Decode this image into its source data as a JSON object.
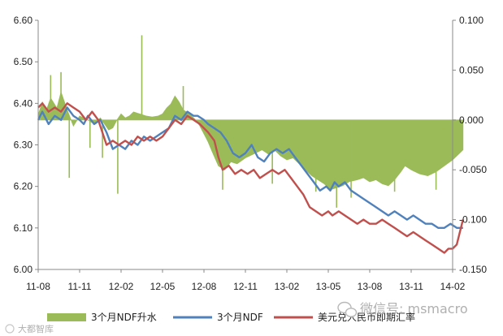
{
  "chart_data": {
    "type": "line",
    "x_labels": [
      "11-08",
      "11-11",
      "12-02",
      "12-05",
      "12-08",
      "12-11",
      "13-02",
      "13-05",
      "13-08",
      "13-11",
      "14-02"
    ],
    "y_left": {
      "ylim": [
        6.0,
        6.6
      ],
      "ticks": [
        "6.00",
        "6.10",
        "6.20",
        "6.30",
        "6.40",
        "6.50",
        "6.60"
      ]
    },
    "y_right": {
      "ylim": [
        -0.15,
        0.1
      ],
      "ticks": [
        "0.100",
        "0.050",
        "0.000",
        "-0.050",
        "-0.100",
        "-0.150"
      ]
    },
    "series": [
      {
        "name": "3个月NDF升水",
        "axis": "right",
        "kind": "area",
        "color": "#9bbb59",
        "points": [
          [
            0,
            0.005
          ],
          [
            0.1,
            0.018
          ],
          [
            0.2,
            0.01
          ],
          [
            0.3,
            0.022
          ],
          [
            0.45,
            0.012
          ],
          [
            0.55,
            0.028
          ],
          [
            0.7,
            0.01
          ],
          [
            0.85,
            -0.006
          ],
          [
            1.0,
            0.004
          ],
          [
            1.2,
            0.0
          ],
          [
            1.35,
            -0.004
          ],
          [
            1.5,
            0.002
          ],
          [
            1.7,
            -0.01
          ],
          [
            1.8,
            -0.008
          ],
          [
            1.9,
            0.0
          ],
          [
            2.0,
            0.006
          ],
          [
            2.1,
            0.002
          ],
          [
            2.2,
            0.004
          ],
          [
            2.3,
            0.008
          ],
          [
            2.45,
            0.006
          ],
          [
            2.6,
            0.004
          ],
          [
            2.75,
            0.003
          ],
          [
            2.9,
            0.004
          ],
          [
            3.0,
            0.006
          ],
          [
            3.1,
            0.012
          ],
          [
            3.2,
            0.016
          ],
          [
            3.3,
            0.024
          ],
          [
            3.4,
            0.018
          ],
          [
            3.5,
            0.01
          ],
          [
            3.65,
            0.006
          ],
          [
            3.8,
            0.0
          ],
          [
            3.9,
            -0.006
          ],
          [
            4.0,
            -0.014
          ],
          [
            4.1,
            -0.022
          ],
          [
            4.2,
            -0.032
          ],
          [
            4.35,
            -0.046
          ],
          [
            4.5,
            -0.05
          ],
          [
            4.65,
            -0.042
          ],
          [
            4.8,
            -0.044
          ],
          [
            5.0,
            -0.038
          ],
          [
            5.2,
            -0.034
          ],
          [
            5.4,
            -0.03
          ],
          [
            5.55,
            -0.034
          ],
          [
            5.7,
            -0.03
          ],
          [
            5.85,
            -0.036
          ],
          [
            6.0,
            -0.04
          ],
          [
            6.15,
            -0.038
          ],
          [
            6.3,
            -0.044
          ],
          [
            6.45,
            -0.05
          ],
          [
            6.6,
            -0.056
          ],
          [
            6.75,
            -0.06
          ],
          [
            6.9,
            -0.064
          ],
          [
            7.05,
            -0.07
          ],
          [
            7.2,
            -0.068
          ],
          [
            7.35,
            -0.066
          ],
          [
            7.5,
            -0.062
          ],
          [
            7.7,
            -0.06
          ],
          [
            7.85,
            -0.058
          ],
          [
            8.0,
            -0.062
          ],
          [
            8.15,
            -0.06
          ],
          [
            8.3,
            -0.064
          ],
          [
            8.45,
            -0.066
          ],
          [
            8.6,
            -0.06
          ],
          [
            8.75,
            -0.052
          ],
          [
            8.85,
            -0.046
          ],
          [
            9.0,
            -0.05
          ],
          [
            9.2,
            -0.054
          ],
          [
            9.4,
            -0.056
          ],
          [
            9.6,
            -0.052
          ],
          [
            9.8,
            -0.046
          ],
          [
            10.0,
            -0.04
          ],
          [
            10.15,
            -0.034
          ],
          [
            10.25,
            -0.03
          ]
        ],
        "spikes": [
          [
            0.3,
            0.045
          ],
          [
            0.55,
            0.048
          ],
          [
            0.75,
            -0.058
          ],
          [
            1.25,
            -0.028
          ],
          [
            1.55,
            -0.038
          ],
          [
            1.92,
            -0.074
          ],
          [
            2.5,
            0.085
          ],
          [
            3.5,
            0.034
          ],
          [
            4.45,
            -0.07
          ],
          [
            5.65,
            -0.064
          ],
          [
            6.7,
            -0.072
          ],
          [
            7.2,
            -0.088
          ],
          [
            7.55,
            -0.078
          ],
          [
            8.6,
            -0.072
          ],
          [
            9.6,
            -0.07
          ]
        ]
      },
      {
        "name": "3个月NDF",
        "axis": "left",
        "kind": "line",
        "color": "#4f81bd",
        "points": [
          [
            0,
            6.36
          ],
          [
            0.1,
            6.38
          ],
          [
            0.25,
            6.35
          ],
          [
            0.4,
            6.37
          ],
          [
            0.55,
            6.36
          ],
          [
            0.7,
            6.39
          ],
          [
            0.85,
            6.37
          ],
          [
            1.0,
            6.36
          ],
          [
            1.1,
            6.35
          ],
          [
            1.2,
            6.37
          ],
          [
            1.35,
            6.35
          ],
          [
            1.5,
            6.36
          ],
          [
            1.65,
            6.33
          ],
          [
            1.8,
            6.29
          ],
          [
            1.95,
            6.3
          ],
          [
            2.1,
            6.29
          ],
          [
            2.25,
            6.31
          ],
          [
            2.4,
            6.3
          ],
          [
            2.55,
            6.32
          ],
          [
            2.7,
            6.31
          ],
          [
            2.85,
            6.32
          ],
          [
            3.0,
            6.33
          ],
          [
            3.15,
            6.34
          ],
          [
            3.3,
            6.37
          ],
          [
            3.45,
            6.36
          ],
          [
            3.6,
            6.38
          ],
          [
            3.75,
            6.37
          ],
          [
            3.85,
            6.37
          ],
          [
            4.0,
            6.36
          ],
          [
            4.1,
            6.35
          ],
          [
            4.25,
            6.34
          ],
          [
            4.4,
            6.33
          ],
          [
            4.55,
            6.31
          ],
          [
            4.7,
            6.28
          ],
          [
            4.85,
            6.27
          ],
          [
            5.0,
            6.28
          ],
          [
            5.15,
            6.3
          ],
          [
            5.3,
            6.27
          ],
          [
            5.45,
            6.26
          ],
          [
            5.6,
            6.28
          ],
          [
            5.75,
            6.29
          ],
          [
            5.9,
            6.28
          ],
          [
            6.05,
            6.29
          ],
          [
            6.2,
            6.27
          ],
          [
            6.35,
            6.25
          ],
          [
            6.5,
            6.23
          ],
          [
            6.65,
            6.21
          ],
          [
            6.8,
            6.19
          ],
          [
            6.95,
            6.2
          ],
          [
            7.05,
            6.19
          ],
          [
            7.15,
            6.21
          ],
          [
            7.25,
            6.2
          ],
          [
            7.4,
            6.21
          ],
          [
            7.55,
            6.19
          ],
          [
            7.7,
            6.18
          ],
          [
            7.85,
            6.17
          ],
          [
            8.0,
            6.16
          ],
          [
            8.15,
            6.15
          ],
          [
            8.3,
            6.14
          ],
          [
            8.45,
            6.13
          ],
          [
            8.6,
            6.14
          ],
          [
            8.75,
            6.13
          ],
          [
            8.9,
            6.12
          ],
          [
            9.05,
            6.13
          ],
          [
            9.2,
            6.12
          ],
          [
            9.35,
            6.11
          ],
          [
            9.5,
            6.11
          ],
          [
            9.65,
            6.1
          ],
          [
            9.8,
            6.1
          ],
          [
            9.95,
            6.11
          ],
          [
            10.1,
            6.1
          ],
          [
            10.25,
            6.1
          ]
        ]
      },
      {
        "name": "美元兑人民币即期汇率",
        "axis": "left",
        "kind": "line",
        "color": "#c0504d",
        "points": [
          [
            0,
            6.39
          ],
          [
            0.1,
            6.4
          ],
          [
            0.25,
            6.38
          ],
          [
            0.4,
            6.39
          ],
          [
            0.55,
            6.38
          ],
          [
            0.7,
            6.4
          ],
          [
            0.85,
            6.39
          ],
          [
            1.0,
            6.38
          ],
          [
            1.15,
            6.36
          ],
          [
            1.3,
            6.38
          ],
          [
            1.45,
            6.36
          ],
          [
            1.55,
            6.33
          ],
          [
            1.65,
            6.3
          ],
          [
            1.8,
            6.31
          ],
          [
            1.95,
            6.3
          ],
          [
            2.1,
            6.31
          ],
          [
            2.25,
            6.3
          ],
          [
            2.4,
            6.32
          ],
          [
            2.55,
            6.31
          ],
          [
            2.7,
            6.32
          ],
          [
            2.85,
            6.31
          ],
          [
            3.0,
            6.32
          ],
          [
            3.15,
            6.34
          ],
          [
            3.3,
            6.36
          ],
          [
            3.45,
            6.35
          ],
          [
            3.6,
            6.37
          ],
          [
            3.75,
            6.36
          ],
          [
            3.9,
            6.35
          ],
          [
            4.0,
            6.34
          ],
          [
            4.1,
            6.33
          ],
          [
            4.25,
            6.31
          ],
          [
            4.35,
            6.27
          ],
          [
            4.45,
            6.24
          ],
          [
            4.6,
            6.25
          ],
          [
            4.75,
            6.23
          ],
          [
            4.9,
            6.24
          ],
          [
            5.05,
            6.23
          ],
          [
            5.2,
            6.24
          ],
          [
            5.35,
            6.22
          ],
          [
            5.5,
            6.23
          ],
          [
            5.65,
            6.24
          ],
          [
            5.8,
            6.23
          ],
          [
            5.95,
            6.24
          ],
          [
            6.1,
            6.22
          ],
          [
            6.25,
            6.2
          ],
          [
            6.4,
            6.18
          ],
          [
            6.55,
            6.15
          ],
          [
            6.7,
            6.14
          ],
          [
            6.85,
            6.13
          ],
          [
            7.0,
            6.14
          ],
          [
            7.1,
            6.13
          ],
          [
            7.25,
            6.14
          ],
          [
            7.4,
            6.13
          ],
          [
            7.55,
            6.12
          ],
          [
            7.7,
            6.11
          ],
          [
            7.85,
            6.12
          ],
          [
            8.0,
            6.11
          ],
          [
            8.15,
            6.11
          ],
          [
            8.3,
            6.12
          ],
          [
            8.45,
            6.11
          ],
          [
            8.6,
            6.1
          ],
          [
            8.75,
            6.09
          ],
          [
            8.9,
            6.08
          ],
          [
            9.05,
            6.09
          ],
          [
            9.2,
            6.08
          ],
          [
            9.35,
            6.07
          ],
          [
            9.5,
            6.06
          ],
          [
            9.65,
            6.05
          ],
          [
            9.8,
            6.04
          ],
          [
            9.9,
            6.05
          ],
          [
            10.0,
            6.05
          ],
          [
            10.1,
            6.06
          ],
          [
            10.2,
            6.1
          ],
          [
            10.25,
            6.12
          ]
        ]
      }
    ],
    "legend": [
      "3个月NDF升水",
      "3个月NDF",
      "美元兑人民币即期汇率"
    ],
    "legend_position": "bottom",
    "grid": false
  },
  "watermark": {
    "left_text": "大都智库",
    "right_text": "微信号: msmacro"
  },
  "icons": {
    "watermark_right": "wechat-icon"
  }
}
